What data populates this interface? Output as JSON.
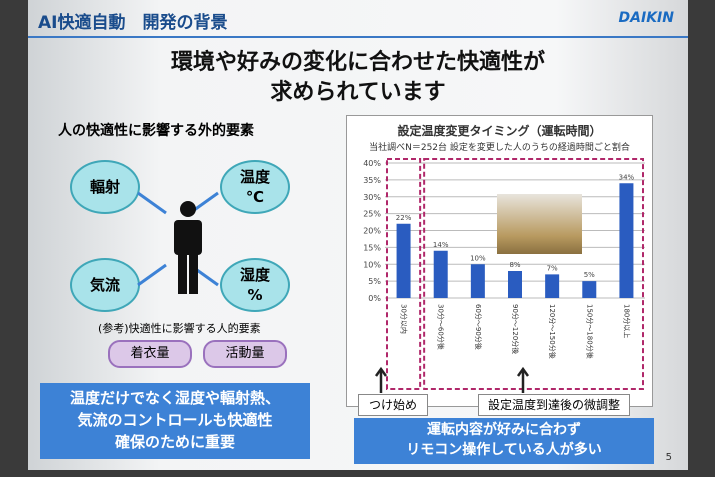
{
  "header": {
    "title": "AI快適自動　開発の背景",
    "logo": "DAIKIN"
  },
  "headline": [
    "環境や好みの変化に合わせた快適性が",
    "求められています"
  ],
  "left": {
    "heading": "人の快適性に影響する外的要素",
    "factors": [
      "輻射",
      "温度\n℃",
      "気流",
      "湿度\n%"
    ],
    "ref_label": "(参考)快適性に影響する人的要素",
    "human_factors": [
      "着衣量",
      "活動量"
    ],
    "summary": [
      "温度だけでなく湿度や輻射熱、",
      "気流のコントロールも快適性",
      "確保のために重要"
    ]
  },
  "chart_data": {
    "type": "bar",
    "title": "設定温度変更タイミング（運転時間）",
    "subtitle": "当社調べN＝252台 設定を変更した人のうちの経過時間ごと割合",
    "categories": [
      "30分以内",
      "30分～60分後",
      "60分～90分後",
      "90分～120分後",
      "120分～150分後",
      "150分～180分後",
      "180分以上"
    ],
    "values": [
      22,
      14,
      10,
      8,
      7,
      5,
      34
    ],
    "value_labels": [
      "22%",
      "14%",
      "10%",
      "8%",
      "7%",
      "5%",
      "34%"
    ],
    "yticks": [
      "0%",
      "5%",
      "10%",
      "15%",
      "20%",
      "25%",
      "30%",
      "35%",
      "40%"
    ],
    "ylim": [
      0,
      40
    ],
    "grid": true,
    "bar_color": "#2a5cc0"
  },
  "annotations": {
    "start": "つけ始め",
    "adjust": "設定温度到達後の微調整"
  },
  "right_summary": [
    "運転内容が好みに合わず",
    "リモコン操作している人が多い"
  ],
  "page_number": "5"
}
